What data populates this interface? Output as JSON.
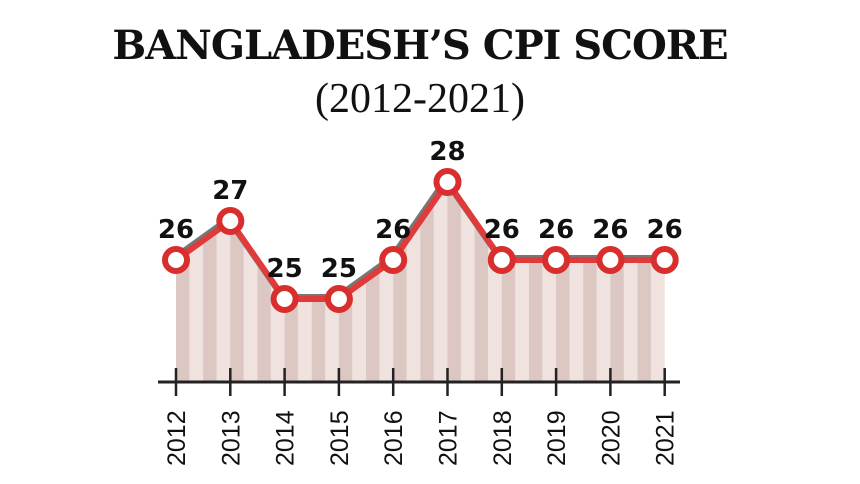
{
  "chart_data": {
    "type": "line",
    "title": "BANGLADESH’S CPI SCORE",
    "subtitle": "(2012-2021)",
    "categories": [
      "2012",
      "2013",
      "2014",
      "2015",
      "2016",
      "2017",
      "2018",
      "2019",
      "2020",
      "2021"
    ],
    "values": [
      26,
      27,
      25,
      25,
      26,
      28,
      26,
      26,
      26,
      26
    ],
    "data_labels": [
      "26",
      "27",
      "25",
      "25",
      "26",
      "28",
      "26",
      "26",
      "26",
      "26"
    ],
    "xlabel": "",
    "ylabel": "",
    "grid": false,
    "legend": "none",
    "colors": {
      "line": "#e03a3a",
      "line_shadow": "#777777",
      "marker_fill": "#ffffff",
      "marker_stroke": "#d82e2e",
      "area_stripe": "#dcc7c2",
      "area_stripe_alt": "#efe2df",
      "axis": "#222222"
    }
  }
}
